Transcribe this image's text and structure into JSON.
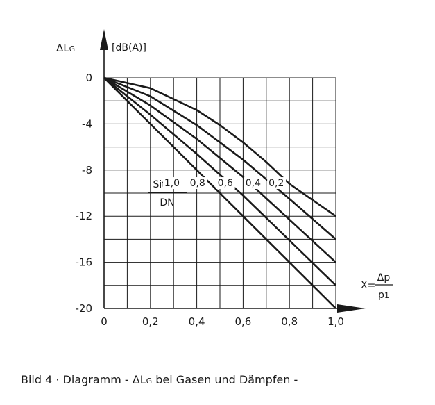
{
  "figure": {
    "caption": {
      "prefix": "Bild 4 · Diagramm - ΔL",
      "sub": "G",
      "suffix": " bei Gasen und Dämpfen -"
    }
  },
  "chart_data": {
    "type": "line",
    "ylabel": {
      "main": "ΔL",
      "sub": "G",
      "unit": "[dB(A)]"
    },
    "xlabel": {
      "prefix": "X=",
      "numerator": "Δp",
      "denominator_main": "p",
      "denominator_sub": "1"
    },
    "xlim": [
      0,
      1.0
    ],
    "ylim": [
      -20,
      0
    ],
    "grid": true,
    "x_ticks": [
      {
        "value": 0,
        "label": "0"
      },
      {
        "value": 0.2,
        "label": "0,2"
      },
      {
        "value": 0.4,
        "label": "0,4"
      },
      {
        "value": 0.6,
        "label": "0,6"
      },
      {
        "value": 0.8,
        "label": "0,8"
      },
      {
        "value": 1.0,
        "label": "1,0"
      }
    ],
    "y_ticks": [
      {
        "value": 0,
        "label": "0"
      },
      {
        "value": -4,
        "label": "-4"
      },
      {
        "value": -8,
        "label": "-8"
      },
      {
        "value": -12,
        "label": "-12"
      },
      {
        "value": -16,
        "label": "-16"
      },
      {
        "value": -20,
        "label": "-20"
      }
    ],
    "legend_title": {
      "numerator": "Sitz Ø",
      "denominator": "DN"
    },
    "series": [
      {
        "name": "1,0",
        "x": [
          0,
          0.2,
          0.4,
          0.6,
          0.8,
          1.0
        ],
        "y": [
          0,
          -4,
          -8,
          -12,
          -16,
          -20
        ]
      },
      {
        "name": "0,8",
        "x": [
          0,
          0.2,
          0.4,
          0.6,
          0.8,
          1.0
        ],
        "y": [
          0,
          -3.2,
          -6.6,
          -10.2,
          -14.1,
          -18
        ]
      },
      {
        "name": "0,6",
        "x": [
          0,
          0.2,
          0.4,
          0.6,
          0.8,
          1.0
        ],
        "y": [
          0,
          -2.4,
          -5.3,
          -8.6,
          -12.3,
          -16
        ]
      },
      {
        "name": "0,4",
        "x": [
          0,
          0.2,
          0.4,
          0.6,
          0.8,
          1.0
        ],
        "y": [
          0,
          -1.6,
          -4.1,
          -7.1,
          -10.5,
          -14
        ]
      },
      {
        "name": "0,2",
        "x": [
          0,
          0.2,
          0.4,
          0.5,
          0.6,
          0.7,
          0.8,
          1.0
        ],
        "y": [
          0,
          -0.9,
          -2.8,
          -4.1,
          -5.6,
          -7.3,
          -9.2,
          -12
        ]
      }
    ]
  }
}
